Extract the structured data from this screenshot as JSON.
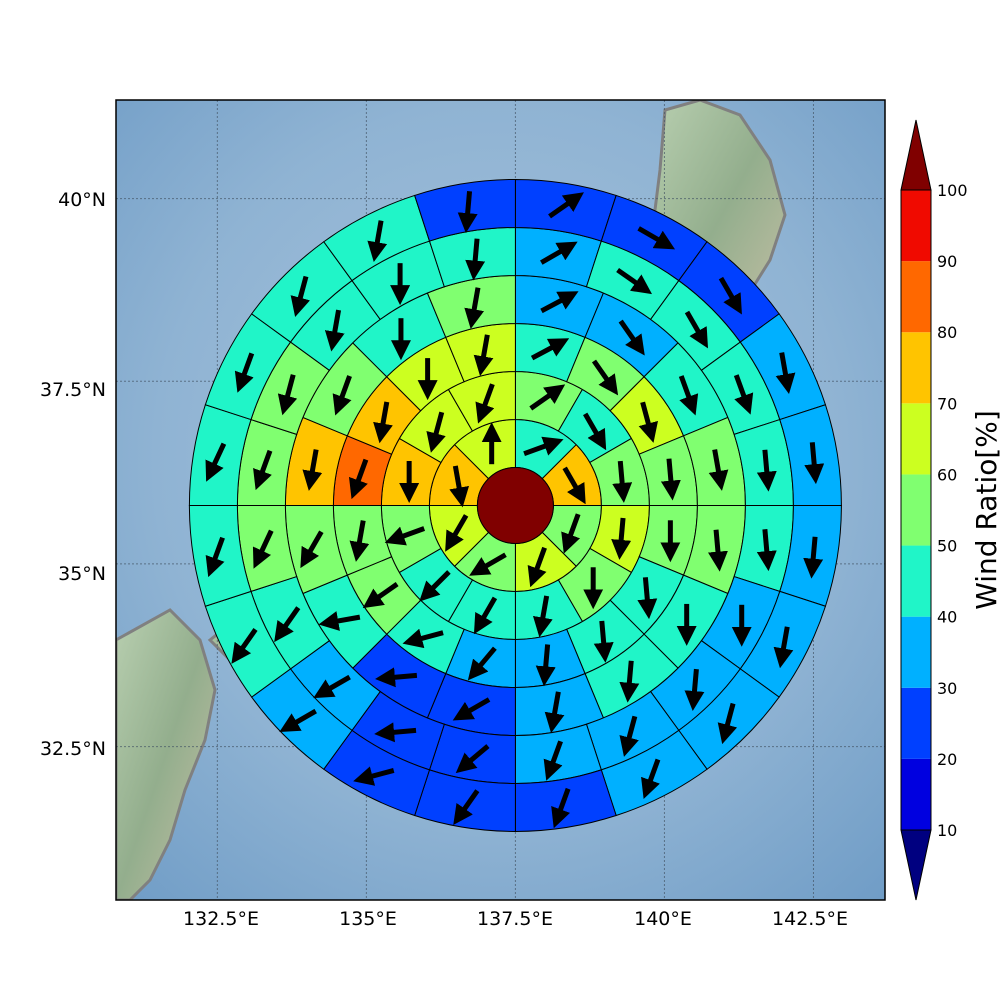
{
  "chart_data": {
    "type": "polar-sector-map",
    "title": "",
    "x_axis": {
      "ticks": [
        132.5,
        135,
        137.5,
        140,
        142.5
      ],
      "tick_labels": [
        "132.5°E",
        "135°E",
        "137.5°E",
        "140°E",
        "142.5°E"
      ],
      "range": [
        130.8,
        143.7
      ]
    },
    "y_axis": {
      "ticks": [
        32.5,
        35,
        37.5,
        40
      ],
      "tick_labels": [
        "32.5°N",
        "35°N",
        "37.5°N",
        "40°N"
      ],
      "range": [
        30.4,
        41.35
      ]
    },
    "grid": true,
    "center": {
      "lon": 137.5,
      "lat": 35.8,
      "value": 100
    },
    "rings_count": 6,
    "sectors_per_ring": [
      8,
      12,
      16,
      16,
      20,
      20
    ],
    "ring_values": [
      [
        40,
        70,
        50,
        60,
        50,
        60,
        70,
        60
      ],
      [
        50,
        40,
        50,
        60,
        50,
        40,
        40,
        40,
        50,
        70,
        60,
        60
      ],
      [
        40,
        50,
        60,
        50,
        50,
        40,
        40,
        30,
        30,
        40,
        50,
        50,
        80,
        70,
        60,
        60
      ],
      [
        30,
        30,
        40,
        50,
        50,
        40,
        40,
        30,
        20,
        20,
        40,
        50,
        70,
        50,
        40,
        50
      ],
      [
        30,
        40,
        40,
        40,
        40,
        40,
        30,
        30,
        30,
        30,
        20,
        20,
        30,
        40,
        50,
        50,
        50,
        40,
        40,
        40
      ],
      [
        20,
        20,
        20,
        30,
        30,
        30,
        30,
        30,
        30,
        20,
        20,
        20,
        30,
        40,
        40,
        40,
        40,
        40,
        40,
        20
      ]
    ],
    "wind_vectors_deg": [
      [
        70,
        150,
        200,
        200,
        240,
        210,
        170,
        0
      ],
      [
        55,
        150,
        175,
        185,
        180,
        190,
        210,
        225,
        250,
        180,
        195,
        200
      ],
      [
        62,
        145,
        165,
        175,
        180,
        175,
        175,
        185,
        220,
        255,
        235,
        190,
        200,
        190,
        180,
        190
      ],
      [
        62,
        145,
        160,
        170,
        175,
        180,
        185,
        190,
        240,
        265,
        260,
        210,
        190,
        200,
        180,
        190
      ],
      [
        60,
        125,
        150,
        160,
        175,
        175,
        180,
        185,
        195,
        200,
        230,
        265,
        240,
        215,
        205,
        200,
        195,
        190,
        180,
        185
      ],
      [
        55,
        120,
        150,
        170,
        175,
        185,
        190,
        195,
        200,
        200,
        215,
        255,
        240,
        215,
        200,
        205,
        200,
        195,
        190,
        185
      ]
    ],
    "colorbar": {
      "label": "Wind Ratio[%]",
      "levels": [
        10,
        20,
        30,
        40,
        50,
        60,
        70,
        80,
        90,
        100
      ],
      "colors": [
        "#0000e0",
        "#0040ff",
        "#00b0ff",
        "#20f5c8",
        "#80ff70",
        "#ccff20",
        "#ffc400",
        "#ff6800",
        "#f00a00"
      ],
      "under_color": "#000080",
      "over_color": "#800000"
    }
  }
}
